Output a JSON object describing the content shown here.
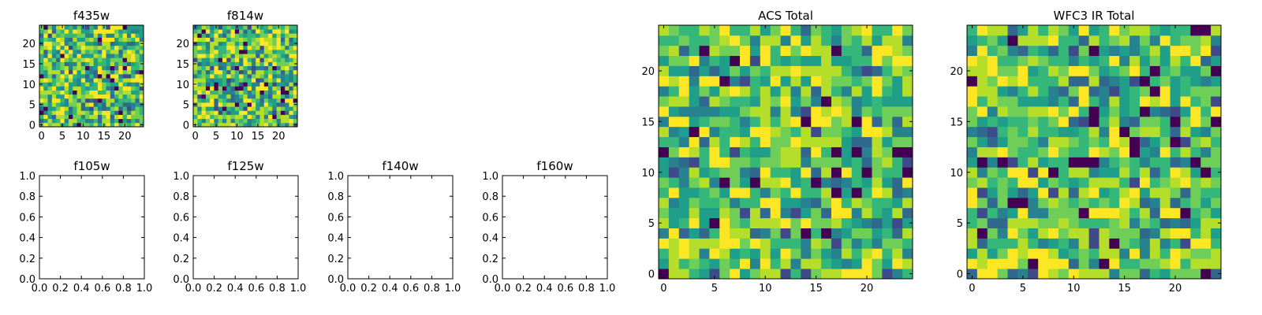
{
  "figure": {
    "image_size": 25,
    "colors": {
      "viridis": [
        "#440154",
        "#482878",
        "#3e4a89",
        "#31688e",
        "#26828e",
        "#1f9e89",
        "#35b779",
        "#6ece58",
        "#b5de2b",
        "#fde725"
      ],
      "axes": "#000000",
      "background": "#ffffff"
    }
  },
  "chart_data": [
    {
      "type": "heatmap",
      "title": "f435w",
      "xticks": [
        0,
        5,
        10,
        15,
        20
      ],
      "yticks": [
        0,
        5,
        10,
        15,
        20
      ],
      "xlim": [
        -0.5,
        24.5
      ],
      "ylim": [
        -0.5,
        24.5
      ],
      "grid": false,
      "colormap": "viridis",
      "values_description": "25x25 noise image"
    },
    {
      "type": "heatmap",
      "title": "f814w",
      "xticks": [
        0,
        5,
        10,
        15,
        20
      ],
      "yticks": [
        0,
        5,
        10,
        15,
        20
      ],
      "xlim": [
        -0.5,
        24.5
      ],
      "ylim": [
        -0.5,
        24.5
      ],
      "grid": false,
      "colormap": "viridis",
      "values_description": "25x25 noise image"
    },
    {
      "type": "heatmap",
      "title": "f105w",
      "xticks": [
        "0.0",
        "0.2",
        "0.4",
        "0.6",
        "0.8",
        "1.0"
      ],
      "yticks": [
        "0.0",
        "0.2",
        "0.4",
        "0.6",
        "0.8",
        "1.0"
      ],
      "xlim": [
        0,
        1
      ],
      "ylim": [
        0,
        1
      ],
      "grid": false,
      "values_description": "empty axes"
    },
    {
      "type": "heatmap",
      "title": "f125w",
      "xticks": [
        "0.0",
        "0.2",
        "0.4",
        "0.6",
        "0.8",
        "1.0"
      ],
      "yticks": [
        "0.0",
        "0.2",
        "0.4",
        "0.6",
        "0.8",
        "1.0"
      ],
      "xlim": [
        0,
        1
      ],
      "ylim": [
        0,
        1
      ],
      "grid": false,
      "values_description": "empty axes"
    },
    {
      "type": "heatmap",
      "title": "f140w",
      "xticks": [
        "0.0",
        "0.2",
        "0.4",
        "0.6",
        "0.8",
        "1.0"
      ],
      "yticks": [
        "0.0",
        "0.2",
        "0.4",
        "0.6",
        "0.8",
        "1.0"
      ],
      "xlim": [
        0,
        1
      ],
      "ylim": [
        0,
        1
      ],
      "grid": false,
      "values_description": "empty axes"
    },
    {
      "type": "heatmap",
      "title": "f160w",
      "xticks": [
        "0.0",
        "0.2",
        "0.4",
        "0.6",
        "0.8",
        "1.0"
      ],
      "yticks": [
        "0.0",
        "0.2",
        "0.4",
        "0.6",
        "0.8",
        "1.0"
      ],
      "xlim": [
        0,
        1
      ],
      "ylim": [
        0,
        1
      ],
      "grid": false,
      "values_description": "empty axes"
    },
    {
      "type": "heatmap",
      "title": "ACS Total",
      "xticks": [
        0,
        5,
        10,
        15,
        20
      ],
      "yticks": [
        0,
        5,
        10,
        15,
        20
      ],
      "xlim": [
        -0.5,
        24.5
      ],
      "ylim": [
        -0.5,
        24.5
      ],
      "grid": false,
      "colormap": "viridis",
      "values_description": "25x25 summed noise image"
    },
    {
      "type": "heatmap",
      "title": "WFC3 IR Total",
      "xticks": [
        0,
        5,
        10,
        15,
        20
      ],
      "yticks": [
        0,
        5,
        10,
        15,
        20
      ],
      "xlim": [
        -0.5,
        24.5
      ],
      "ylim": [
        -0.5,
        24.5
      ],
      "grid": false,
      "colormap": "viridis",
      "values_description": "25x25 summed noise image"
    }
  ]
}
